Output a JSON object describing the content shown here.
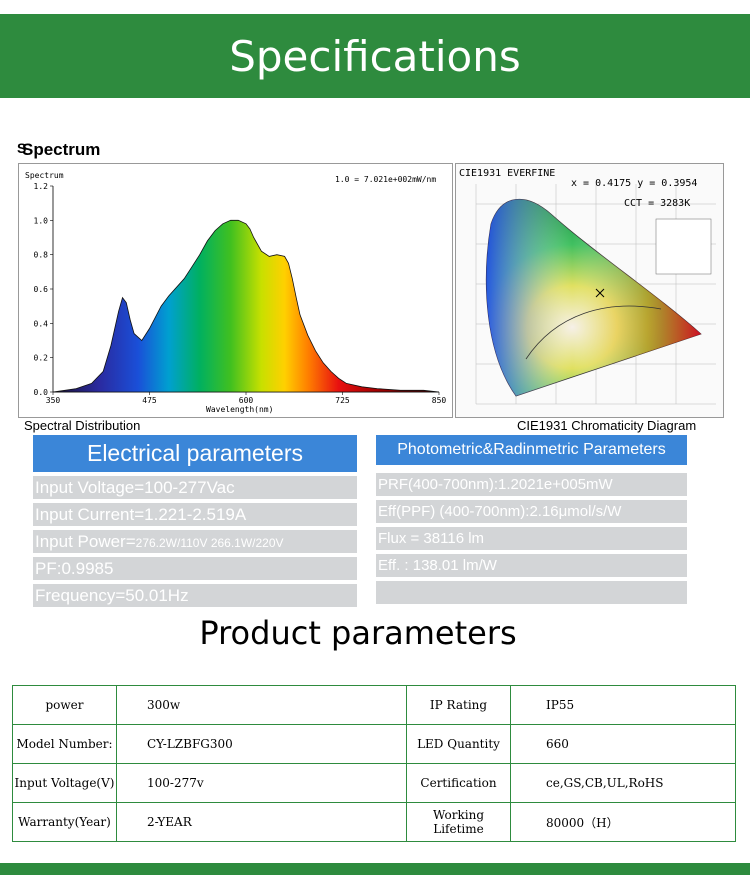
{
  "banner_title": "Specifications",
  "spectrum": {
    "heading": "Spectrum",
    "chart_label": "Spectrum",
    "scale_note": "1.0 = 7.021e+002mW/nm",
    "xlabel": "Wavelength(nm)",
    "caption": "Spectral Distribution"
  },
  "cie": {
    "header": "CIE1931 EVERFINE",
    "xy": "x = 0.4175 y = 0.3954",
    "cct": "CCT = 3283K",
    "caption": "CIE1931 Chromaticity Diagram"
  },
  "electrical": {
    "title": "Electrical parameters",
    "voltage": "Input Voltage=100-277Vac",
    "current": "Input Current=1.221-2.519A",
    "power_label": "Input Power=",
    "power_value": "276.2W/110V  266.1W/220V",
    "pf": "PF:0.9985",
    "frequency": "Frequency=50.01Hz"
  },
  "photometric": {
    "title": "Photometric&Radinmetric Parameters",
    "prf": "PRF(400-700nm):1.2021e+005mW",
    "ppf": "Eff(PPF) (400-700nm):2.16μmol/s/W",
    "flux": "Flux  = 38116 lm",
    "eff": "Eff. : 138.01 lm/W"
  },
  "product": {
    "title": "Product parameters",
    "rows": [
      {
        "l1": "power",
        "v1": "300w",
        "l2": "IP Rating",
        "v2": "IP55"
      },
      {
        "l1": "Model Number:",
        "v1": "CY-LZBFG300",
        "l2": "LED Quantity",
        "v2": "660"
      },
      {
        "l1": "Input Voltage(V)",
        "v1": "100-277v",
        "l2": "Certification",
        "v2": "ce,GS,CB,UL,RoHS"
      },
      {
        "l1": "Warranty(Year)",
        "v1": "2-YEAR",
        "l2": "Working Lifetime",
        "v2": "80000（H）"
      }
    ]
  },
  "chart_data": {
    "type": "area",
    "title": "Spectrum",
    "xlabel": "Wavelength(nm)",
    "ylabel": "",
    "xlim": [
      350,
      850
    ],
    "ylim": [
      0,
      1.2
    ],
    "xticks": [
      350,
      475,
      600,
      725,
      850
    ],
    "yticks": [
      0.0,
      0.2,
      0.4,
      0.6,
      0.8,
      1.0,
      1.2
    ],
    "grid": false,
    "x": [
      350,
      380,
      400,
      415,
      425,
      435,
      440,
      445,
      450,
      455,
      465,
      475,
      490,
      500,
      510,
      520,
      530,
      540,
      550,
      560,
      570,
      580,
      590,
      600,
      605,
      610,
      620,
      630,
      640,
      650,
      655,
      660,
      665,
      670,
      680,
      690,
      700,
      710,
      720,
      730,
      750,
      770,
      800,
      830,
      850
    ],
    "y": [
      0.0,
      0.02,
      0.05,
      0.12,
      0.27,
      0.47,
      0.55,
      0.52,
      0.42,
      0.34,
      0.3,
      0.37,
      0.5,
      0.56,
      0.61,
      0.66,
      0.73,
      0.8,
      0.88,
      0.94,
      0.98,
      1.0,
      1.0,
      0.98,
      0.95,
      0.9,
      0.82,
      0.79,
      0.8,
      0.79,
      0.75,
      0.66,
      0.55,
      0.45,
      0.33,
      0.24,
      0.17,
      0.12,
      0.08,
      0.05,
      0.03,
      0.02,
      0.01,
      0.01,
      0.0
    ]
  }
}
